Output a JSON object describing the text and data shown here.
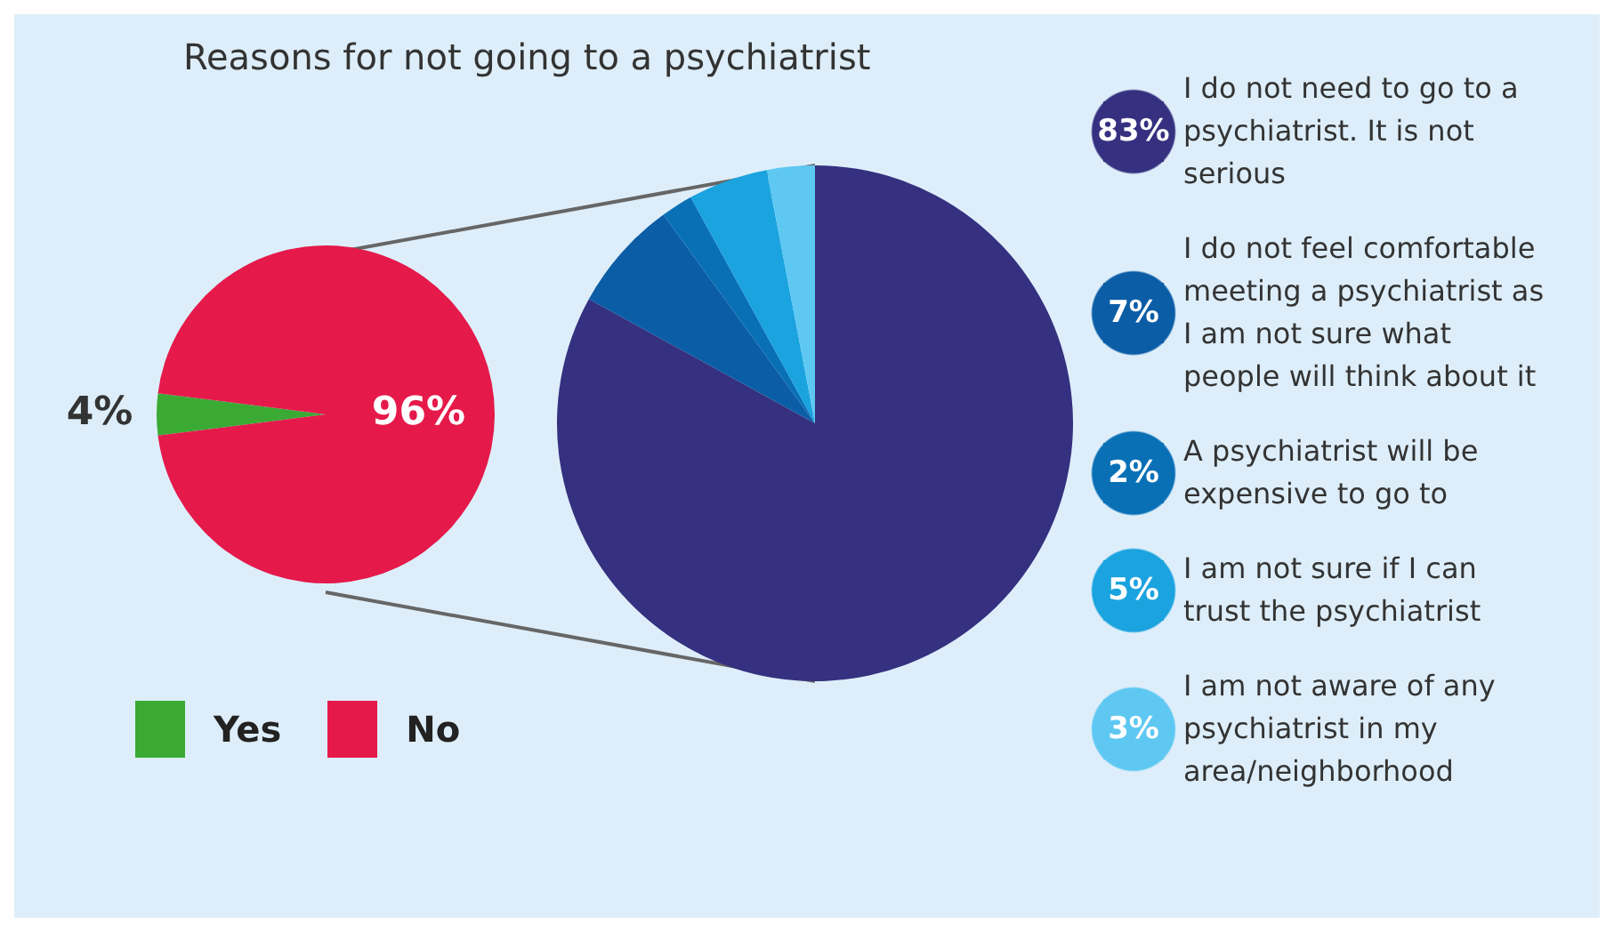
{
  "chart_data": [
    {
      "type": "pie",
      "title": "Reasons for not going to a psychiatrist",
      "categories": [
        "Yes",
        "No"
      ],
      "values": [
        4,
        96
      ],
      "colors": [
        "#3aaa35",
        "#e5194a"
      ],
      "value_labels": [
        "4%",
        "96%"
      ],
      "legend": "bottom"
    },
    {
      "type": "pie",
      "categories": [
        "I do not need to go to a psychiatrist. It is not serious",
        "I do not feel comfortable meeting a psychiatrist as I am not sure what people will think about it",
        "A psychiatrist will be expensive to go to",
        "I am not sure if I can trust the psychiatrist",
        "I am not aware of any psychiatrist in my area/neighborhood"
      ],
      "values": [
        83,
        7,
        2,
        5,
        3
      ],
      "colors": [
        "#35307f",
        "#0b5da6",
        "#0a70b6",
        "#1ba3df",
        "#5ec8f2"
      ],
      "value_labels": [
        "83%",
        "7%",
        "2%",
        "5%",
        "3%"
      ],
      "legend": "right"
    }
  ]
}
